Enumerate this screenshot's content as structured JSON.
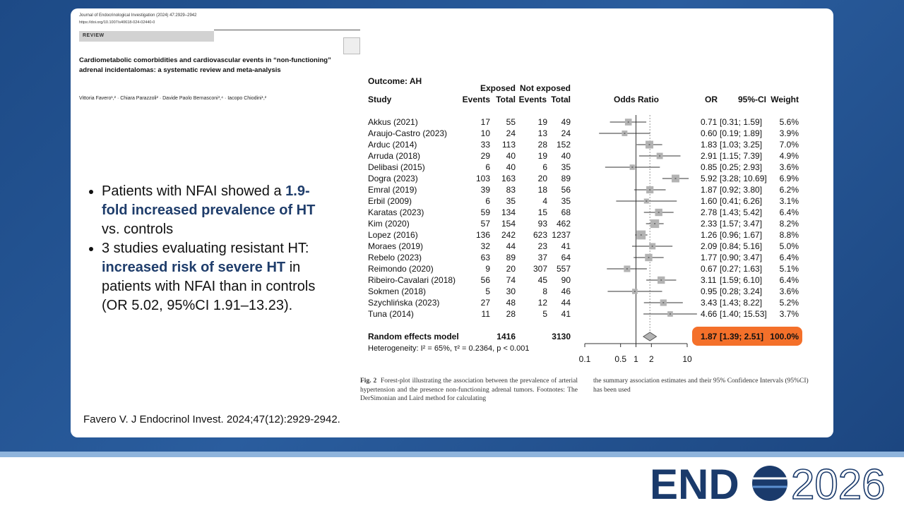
{
  "paper": {
    "journal": "Journal of Endocrinological Investigation (2024) 47:2929–2942",
    "doi": "https://doi.org/10.1007/s40618-024-02440-0",
    "section": "REVIEW",
    "title": "Cardiometabolic comorbidities and cardiovascular events in “non-functioning” adrenal incidentalomas: a systematic review and meta-analysis",
    "authors": "Vittoria Favero¹,² · Chiara Parazzoli² · Davide Paolo Bernasconi³,⁴ · Iacopo Chiodini¹,²"
  },
  "bullets": [
    [
      {
        "text": "Patients with NFAI showed a ",
        "bold": false
      },
      {
        "text": "1.9-fold increased prevalence of HT",
        "bold": true
      },
      {
        "text": " vs. controls",
        "bold": false
      }
    ],
    [
      {
        "text": "3 studies evaluating resistant HT: ",
        "bold": false
      },
      {
        "text": "increased risk of severe HT",
        "bold": true
      },
      {
        "text": " in patients with NFAI than in controls (OR 5.02, 95%CI 1.91–13.23).",
        "bold": false
      }
    ]
  ],
  "forest": {
    "outcome": "Outcome: AH",
    "headers": {
      "exposed": "Exposed",
      "not_exposed": "Not exposed",
      "study": "Study",
      "events1": "Events",
      "total1": "Total",
      "events2": "Events",
      "total2": "Total",
      "odds_ratio": "Odds Ratio",
      "or": "OR",
      "ci": "95%-CI",
      "weight": "Weight"
    },
    "studies": [
      {
        "study": "Akkus (2021)",
        "e1": 17,
        "t1": 55,
        "e2": 19,
        "t2": 49,
        "or": "0.71",
        "ci": [
          0.31,
          1.59
        ],
        "ci_label": "[0.31; 1.59]",
        "weight": "5.6%"
      },
      {
        "study": "Araujo-Castro (2023)",
        "e1": 10,
        "t1": 24,
        "e2": 13,
        "t2": 24,
        "or": "0.60",
        "ci": [
          0.19,
          1.89
        ],
        "ci_label": "[0.19; 1.89]",
        "weight": "3.9%"
      },
      {
        "study": "Arduc (2014)",
        "e1": 33,
        "t1": 113,
        "e2": 28,
        "t2": 152,
        "or": "1.83",
        "ci": [
          1.03,
          3.25
        ],
        "ci_label": "[1.03; 3.25]",
        "weight": "7.0%"
      },
      {
        "study": "Arruda (2018)",
        "e1": 29,
        "t1": 40,
        "e2": 19,
        "t2": 40,
        "or": "2.91",
        "ci": [
          1.15,
          7.39
        ],
        "ci_label": "[1.15; 7.39]",
        "weight": "4.9%"
      },
      {
        "study": "Delibasi (2015)",
        "e1": 6,
        "t1": 40,
        "e2": 6,
        "t2": 35,
        "or": "0.85",
        "ci": [
          0.25,
          2.93
        ],
        "ci_label": "[0.25; 2.93]",
        "weight": "3.6%"
      },
      {
        "study": "Dogra (2023)",
        "e1": 103,
        "t1": 163,
        "e2": 20,
        "t2": 89,
        "or": "5.92",
        "ci": [
          3.28,
          10.69
        ],
        "ci_label": "[3.28; 10.69]",
        "weight": "6.9%"
      },
      {
        "study": "Emral (2019)",
        "e1": 39,
        "t1": 83,
        "e2": 18,
        "t2": 56,
        "or": "1.87",
        "ci": [
          0.92,
          3.8
        ],
        "ci_label": "[0.92; 3.80]",
        "weight": "6.2%"
      },
      {
        "study": "Erbil (2009)",
        "e1": 6,
        "t1": 35,
        "e2": 4,
        "t2": 35,
        "or": "1.60",
        "ci": [
          0.41,
          6.26
        ],
        "ci_label": "[0.41; 6.26]",
        "weight": "3.1%"
      },
      {
        "study": "Karatas (2023)",
        "e1": 59,
        "t1": 134,
        "e2": 15,
        "t2": 68,
        "or": "2.78",
        "ci": [
          1.43,
          5.42
        ],
        "ci_label": "[1.43; 5.42]",
        "weight": "6.4%"
      },
      {
        "study": "Kim (2020)",
        "e1": 57,
        "t1": 154,
        "e2": 93,
        "t2": 462,
        "or": "2.33",
        "ci": [
          1.57,
          3.47
        ],
        "ci_label": "[1.57; 3.47]",
        "weight": "8.2%"
      },
      {
        "study": "Lopez (2016)",
        "e1": 136,
        "t1": 242,
        "e2": 623,
        "t2": 1237,
        "or": "1.26",
        "ci": [
          0.96,
          1.67
        ],
        "ci_label": "[0.96; 1.67]",
        "weight": "8.8%"
      },
      {
        "study": "Moraes (2019)",
        "e1": 32,
        "t1": 44,
        "e2": 23,
        "t2": 41,
        "or": "2.09",
        "ci": [
          0.84,
          5.16
        ],
        "ci_label": "[0.84; 5.16]",
        "weight": "5.0%"
      },
      {
        "study": "Rebelo (2023)",
        "e1": 63,
        "t1": 89,
        "e2": 37,
        "t2": 64,
        "or": "1.77",
        "ci": [
          0.9,
          3.47
        ],
        "ci_label": "[0.90; 3.47]",
        "weight": "6.4%"
      },
      {
        "study": "Reimondo (2020)",
        "e1": 9,
        "t1": 20,
        "e2": 307,
        "t2": 557,
        "or": "0.67",
        "ci": [
          0.27,
          1.63
        ],
        "ci_label": "[0.27; 1.63]",
        "weight": "5.1%"
      },
      {
        "study": "Ribeiro-Cavalari (2018)",
        "e1": 56,
        "t1": 74,
        "e2": 45,
        "t2": 90,
        "or": "3.11",
        "ci": [
          1.59,
          6.1
        ],
        "ci_label": "[1.59; 6.10]",
        "weight": "6.4%"
      },
      {
        "study": "Sokmen (2018)",
        "e1": 5,
        "t1": 30,
        "e2": 8,
        "t2": 46,
        "or": "0.95",
        "ci": [
          0.28,
          3.24
        ],
        "ci_label": "[0.28; 3.24]",
        "weight": "3.6%"
      },
      {
        "study": "Szychlińska (2023)",
        "e1": 27,
        "t1": 48,
        "e2": 12,
        "t2": 44,
        "or": "3.43",
        "ci": [
          1.43,
          8.22
        ],
        "ci_label": "[1.43; 8.22]",
        "weight": "5.2%"
      },
      {
        "study": "Tuna (2014)",
        "e1": 11,
        "t1": 28,
        "e2": 5,
        "t2": 41,
        "or": "4.66",
        "ci": [
          1.4,
          15.53
        ],
        "ci_label": "[1.40; 15.53]",
        "weight": "3.7%"
      }
    ],
    "random": {
      "label": "Random effects model",
      "t1": 1416,
      "t2": 3130,
      "or": "1.87",
      "ci": [
        1.39,
        2.51
      ],
      "ci_label": "[1.39; 2.51]",
      "weight": "100.0%"
    },
    "heterogeneity": "Heterogeneity: I² = 65%, τ² = 0.2364, p < 0.001",
    "xlim": [
      0.1,
      10
    ],
    "xticks": [
      0.1,
      0.5,
      1,
      2,
      10
    ],
    "log_scale": true
  },
  "caption": {
    "label": "Fig. 2",
    "col1": "Forest-plot illustrating the association between the prevalence of arterial hypertension and the presence non-functioning adrenal tumors. Footnotes: The DerSimonian and Laird method for calculating",
    "col2": "the summary association estimates and their 95% Confidence Intervals (95%CI) has been used"
  },
  "citation": "Favero V. J Endocrinol Invest. 2024;47(12):2929-2942.",
  "logo": {
    "left": "END",
    "right": "2026"
  }
}
